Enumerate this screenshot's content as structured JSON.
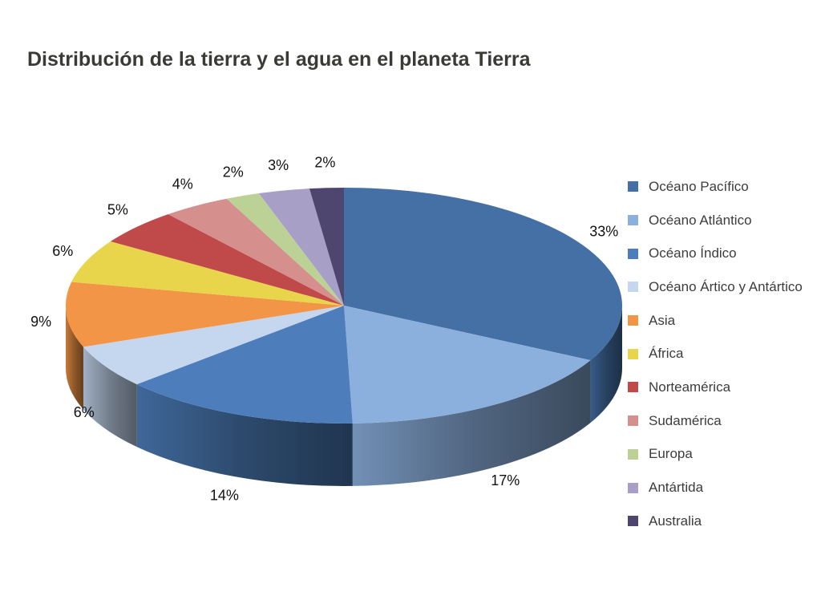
{
  "title": "Distribución de la tierra y el agua en el planeta Tierra",
  "chart_data": {
    "type": "pie",
    "title": "Distribución de la tierra y el agua en el planeta Tierra",
    "style": "3d",
    "legend_position": "right",
    "labels": [
      "Océano Pacífico",
      "Océano Atlántico",
      "Océano Índico",
      "Océano Ártico y Antártico",
      "Asia",
      "África",
      "Norteamérica",
      "Sudamérica",
      "Europa",
      "Antártida",
      "Australia"
    ],
    "values": [
      33,
      17,
      14,
      6,
      9,
      6,
      5,
      4,
      2,
      3,
      2
    ],
    "value_labels": [
      "33%",
      "17%",
      "14%",
      "6%",
      "9%",
      "6%",
      "5%",
      "4%",
      "2%",
      "3%",
      "2%"
    ],
    "colors": [
      "#4470a6",
      "#8bb0de",
      "#4d7ebb",
      "#c4d7ee",
      "#f29546",
      "#e8d54b",
      "#c0494a",
      "#d58f8d",
      "#bcd196",
      "#a89fc6",
      "#4f4670"
    ]
  }
}
